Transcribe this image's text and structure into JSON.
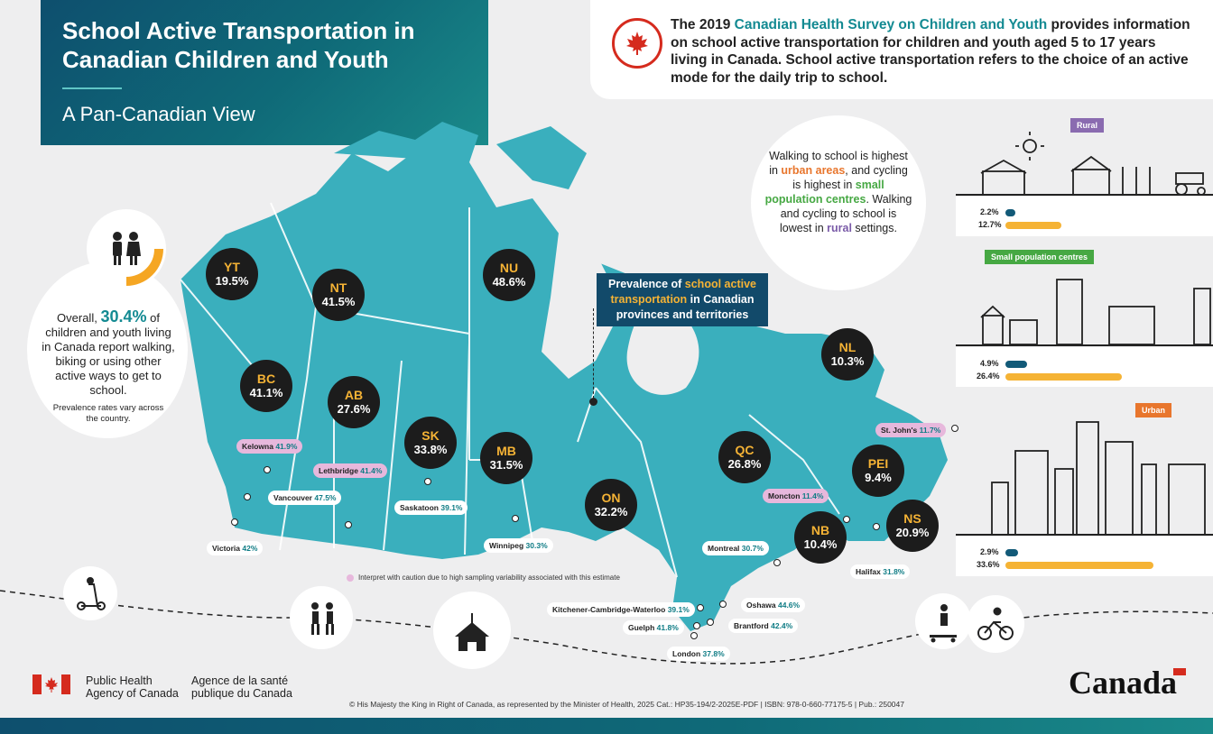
{
  "header": {
    "title": "School Active Transportation in Canadian Children and Youth",
    "subtitle": "A Pan-Canadian View"
  },
  "intro": {
    "part1": "The 2019 ",
    "survey_name": "Canadian Health Survey on Children and Youth",
    "part2": " provides information on school active transportation for children and youth aged 5 to 17 years living in Canada. School active transportation refers to the choice of an active mode for the daily trip to school."
  },
  "overall": {
    "prefix": "Overall, ",
    "value": "30.4%",
    "text": " of children and youth living in Canada report walking, biking or using other active ways to get to school.",
    "note": "Prevalence rates vary across the country."
  },
  "callout": {
    "t1": "Walking to school is highest in ",
    "urban": "urban areas",
    "t2": ", and cycling is highest in ",
    "small": "small population centres",
    "t3": ". Walking and cycling to school is lowest in ",
    "rural": "rural",
    "t4": " settings."
  },
  "prevalence_label": {
    "t1": "Prevalence of ",
    "highlight": "school active transportation",
    "t2": " in Canadian provinces and territories"
  },
  "provinces": [
    {
      "code": "YT",
      "value": "19.5%"
    },
    {
      "code": "NT",
      "value": "41.5%"
    },
    {
      "code": "NU",
      "value": "48.6%"
    },
    {
      "code": "BC",
      "value": "41.1%"
    },
    {
      "code": "AB",
      "value": "27.6%"
    },
    {
      "code": "SK",
      "value": "33.8%"
    },
    {
      "code": "MB",
      "value": "31.5%"
    },
    {
      "code": "ON",
      "value": "32.2%"
    },
    {
      "code": "QC",
      "value": "26.8%"
    },
    {
      "code": "NL",
      "value": "10.3%"
    },
    {
      "code": "PEI",
      "value": "9.4%"
    },
    {
      "code": "NB",
      "value": "10.4%"
    },
    {
      "code": "NS",
      "value": "20.9%"
    }
  ],
  "cities": [
    {
      "name": "Kelowna",
      "value": "41.9%",
      "caution": true
    },
    {
      "name": "Lethbridge",
      "value": "41.4%",
      "caution": true
    },
    {
      "name": "Vancouver",
      "value": "47.5%",
      "caution": false
    },
    {
      "name": "Saskatoon",
      "value": "39.1%",
      "caution": false
    },
    {
      "name": "Victoria",
      "value": "42%",
      "caution": false
    },
    {
      "name": "Winnipeg",
      "value": "30.3%",
      "caution": false
    },
    {
      "name": "Montreal",
      "value": "30.7%",
      "caution": false
    },
    {
      "name": "Moncton",
      "value": "11.4%",
      "caution": true
    },
    {
      "name": "St. John's",
      "value": "11.7%",
      "caution": true
    },
    {
      "name": "Halifax",
      "value": "31.8%",
      "caution": false
    },
    {
      "name": "Kitchener-Cambridge-Waterloo",
      "value": "39.1%",
      "caution": false
    },
    {
      "name": "Oshawa",
      "value": "44.6%",
      "caution": false
    },
    {
      "name": "Guelph",
      "value": "41.8%",
      "caution": false
    },
    {
      "name": "Brantford",
      "value": "42.4%",
      "caution": false
    },
    {
      "name": "London",
      "value": "37.8%",
      "caution": false
    }
  ],
  "caution_note": "Interpret with caution due to high sampling variability associated with this estimate",
  "settings": [
    {
      "label": "Rural",
      "cycling": "2.2%",
      "cycling_value": 2.2,
      "walking": "12.7%",
      "walking_value": 12.7,
      "color": "#8a6bb0"
    },
    {
      "label": "Small population centres",
      "cycling": "4.9%",
      "cycling_value": 4.9,
      "walking": "26.4%",
      "walking_value": 26.4,
      "color": "#46a843"
    },
    {
      "label": "Urban",
      "cycling": "2.9%",
      "cycling_value": 2.9,
      "walking": "33.6%",
      "walking_value": 33.6,
      "color": "#e8762d"
    }
  ],
  "colors": {
    "cycling_bar": "#125a78",
    "walking_bar": "#f5b335",
    "map": "#3aafbd",
    "accent_teal": "#138a92"
  },
  "footer": {
    "agency_en": "Public Health Agency of Canada",
    "agency_fr": "Agence de la santé publique du Canada",
    "copyright": "© His Majesty the King in Right of Canada, as represented by the Minister of Health, 2025     Cat.: HP35-194/2-2025E-PDF  |  ISBN: 978-0-660-77175-5  |  Pub.: 250047",
    "wordmark": "Canada"
  }
}
